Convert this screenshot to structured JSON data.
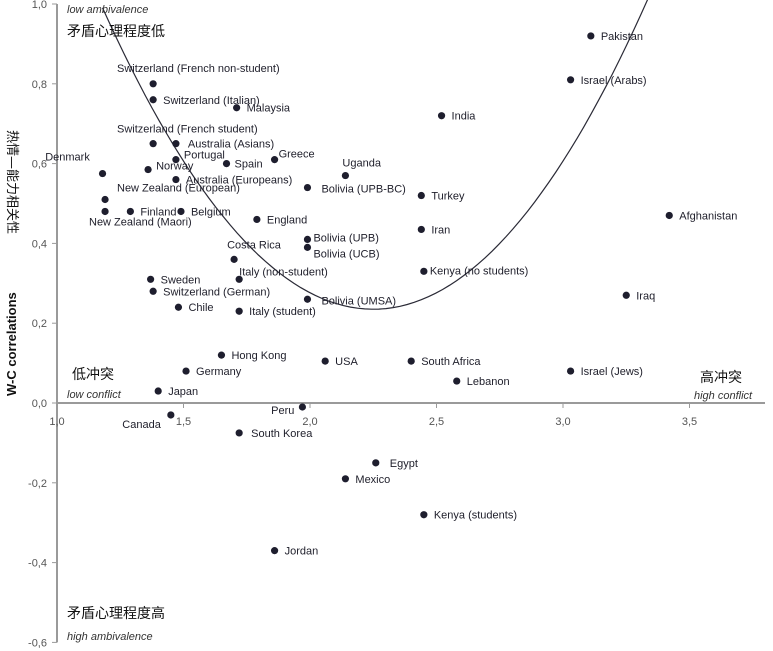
{
  "chart_data": {
    "type": "scatter",
    "ylabel": "W-C correlations",
    "ylabel_cn": "热情—能力相关性",
    "xlim": [
      1.0,
      3.8
    ],
    "ylim": [
      -0.6,
      1.0
    ],
    "xticks": [
      "1,0",
      "1,5",
      "2,0",
      "2,5",
      "3,0",
      "3,5"
    ],
    "yticks": [
      "1,0",
      "0,8",
      "0,6",
      "0,4",
      "0,2",
      "0,0",
      "-0,2",
      "-0,4",
      "-0,6"
    ],
    "grid": false,
    "trendline": "quadratic",
    "annotations": {
      "top_en": "low ambivalence",
      "top_cn": "矛盾心理程度低",
      "bottom_en": "high ambivalence",
      "bottom_cn": "矛盾心理程度高",
      "left_en": "low conflict",
      "left_cn": "低冲突",
      "right_en": "high conflict",
      "right_cn": "高冲突"
    },
    "points": [
      {
        "label": "Pakistan",
        "x": 3.11,
        "y": 0.92
      },
      {
        "label": "Israel (Arabs)",
        "x": 3.03,
        "y": 0.81
      },
      {
        "label": "India",
        "x": 2.52,
        "y": 0.72
      },
      {
        "label": "Switzerland (French non-student)",
        "x": 1.38,
        "y": 0.8
      },
      {
        "label": "Switzerland (Italian)",
        "x": 1.38,
        "y": 0.76
      },
      {
        "label": "Malaysia",
        "x": 1.71,
        "y": 0.74
      },
      {
        "label": "Switzerland (French student)",
        "x": 1.38,
        "y": 0.65
      },
      {
        "label": "Australia (Asians)",
        "x": 1.47,
        "y": 0.65
      },
      {
        "label": "Portugal",
        "x": 1.47,
        "y": 0.61
      },
      {
        "label": "Greece",
        "x": 1.86,
        "y": 0.61
      },
      {
        "label": "Spain",
        "x": 1.67,
        "y": 0.6
      },
      {
        "label": "Uganda",
        "x": 2.14,
        "y": 0.57
      },
      {
        "label": "Denmark",
        "x": 1.18,
        "y": 0.575
      },
      {
        "label": "Norway",
        "x": 1.36,
        "y": 0.585
      },
      {
        "label": "Australia (Europeans)",
        "x": 1.47,
        "y": 0.56
      },
      {
        "label": "Bolivia (UPB-BC)",
        "x": 1.99,
        "y": 0.54
      },
      {
        "label": "Turkey",
        "x": 2.44,
        "y": 0.52
      },
      {
        "label": "New Zealand (European)",
        "x": 1.19,
        "y": 0.51
      },
      {
        "label": "Finland",
        "x": 1.29,
        "y": 0.48
      },
      {
        "label": "Belgium",
        "x": 1.49,
        "y": 0.48
      },
      {
        "label": "New Zealand (Maori)",
        "x": 1.19,
        "y": 0.48
      },
      {
        "label": "England",
        "x": 1.79,
        "y": 0.46
      },
      {
        "label": "Afghanistan",
        "x": 3.42,
        "y": 0.47
      },
      {
        "label": "Iran",
        "x": 2.44,
        "y": 0.435
      },
      {
        "label": "Bolivia (UPB)",
        "x": 1.99,
        "y": 0.41
      },
      {
        "label": "Bolivia (UCB)",
        "x": 1.99,
        "y": 0.39
      },
      {
        "label": "Costa Rica",
        "x": 1.7,
        "y": 0.36
      },
      {
        "label": "Italy (non-student)",
        "x": 1.72,
        "y": 0.31
      },
      {
        "label": "Kenya (no students)",
        "x": 2.45,
        "y": 0.33
      },
      {
        "label": "Sweden",
        "x": 1.37,
        "y": 0.31
      },
      {
        "label": "Switzerland (German)",
        "x": 1.38,
        "y": 0.28
      },
      {
        "label": "Iraq",
        "x": 3.25,
        "y": 0.27
      },
      {
        "label": "Bolivia (UMSA)",
        "x": 1.99,
        "y": 0.26
      },
      {
        "label": "Chile",
        "x": 1.48,
        "y": 0.24
      },
      {
        "label": "Italy (student)",
        "x": 1.72,
        "y": 0.23
      },
      {
        "label": "Hong Kong",
        "x": 1.65,
        "y": 0.12
      },
      {
        "label": "USA",
        "x": 2.06,
        "y": 0.105
      },
      {
        "label": "South Africa",
        "x": 2.4,
        "y": 0.105
      },
      {
        "label": "Germany",
        "x": 1.51,
        "y": 0.08
      },
      {
        "label": "Israel (Jews)",
        "x": 3.03,
        "y": 0.08
      },
      {
        "label": "Lebanon",
        "x": 2.58,
        "y": 0.055
      },
      {
        "label": "Japan",
        "x": 1.4,
        "y": 0.03
      },
      {
        "label": "Peru",
        "x": 1.97,
        "y": -0.01
      },
      {
        "label": "Canada",
        "x": 1.45,
        "y": -0.03
      },
      {
        "label": "South Korea",
        "x": 1.72,
        "y": -0.075
      },
      {
        "label": "Egypt",
        "x": 2.26,
        "y": -0.15
      },
      {
        "label": "Mexico",
        "x": 2.14,
        "y": -0.19
      },
      {
        "label": "Kenya (students)",
        "x": 2.45,
        "y": -0.28
      },
      {
        "label": "Jordan",
        "x": 1.86,
        "y": -0.37
      }
    ]
  }
}
